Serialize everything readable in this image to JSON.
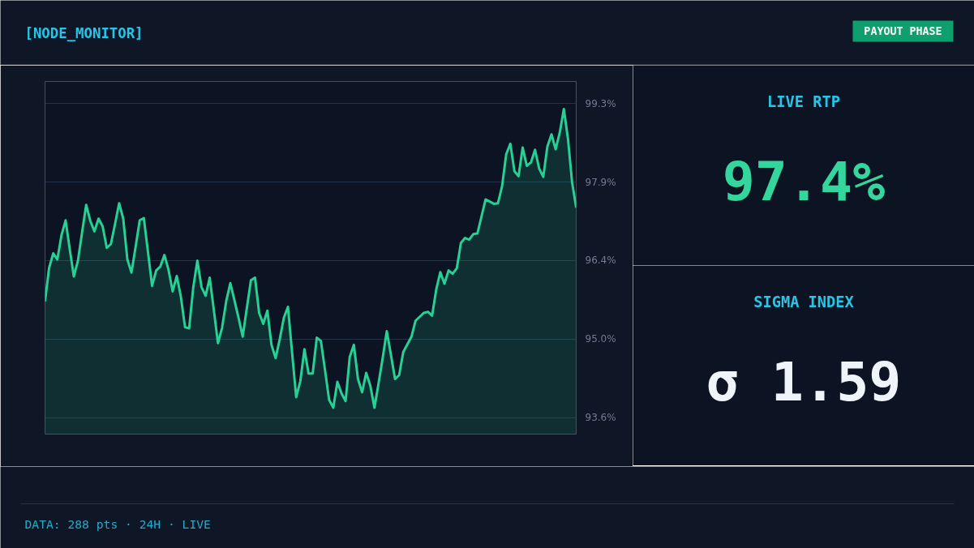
{
  "chart_data": [
    {
      "type": "area",
      "title": "[NODE_MONITOR]",
      "annotations": [
        "PAYOUT PHASE",
        "DATA: 288 pts  ·  24H  ·  LIVE"
      ],
      "categories": [
        null,
        null,
        null,
        null,
        null,
        null,
        null,
        null,
        null,
        null,
        null,
        null,
        null,
        null,
        null,
        null,
        null,
        null,
        null,
        null,
        null,
        null,
        null,
        null,
        null,
        null,
        null,
        null,
        null,
        null,
        null,
        null,
        null,
        null,
        null,
        null,
        null,
        null,
        null,
        null,
        null,
        null,
        null,
        null,
        null,
        null,
        null,
        null,
        null,
        null,
        null,
        null,
        null,
        null,
        null,
        null,
        null,
        null,
        null,
        null,
        null,
        null,
        null,
        null,
        null,
        null,
        null,
        null,
        null,
        null,
        null,
        null,
        null,
        null,
        null,
        null,
        null,
        null,
        null,
        null,
        null,
        null,
        null,
        null,
        null,
        null,
        null,
        null,
        null,
        null,
        null,
        null,
        null,
        null,
        null,
        null,
        null,
        null,
        null,
        null,
        null,
        null,
        null,
        null,
        null,
        null,
        null,
        null,
        null,
        null,
        null,
        null,
        null,
        null,
        null,
        null,
        null,
        null,
        null,
        null,
        null,
        null,
        null,
        null,
        null,
        null,
        null,
        null,
        null,
        null
      ],
      "series": [
        {
          "color": "#27d095",
          "values": [
            95.71,
            96.32,
            96.58,
            96.47,
            96.91,
            97.18,
            96.66,
            96.16,
            96.45,
            96.96,
            97.46,
            97.17,
            96.98,
            97.21,
            97.07,
            96.68,
            96.75,
            97.11,
            97.49,
            97.21,
            96.47,
            96.23,
            96.7,
            97.18,
            97.22,
            96.61,
            95.99,
            96.27,
            96.34,
            96.55,
            96.28,
            95.89,
            96.17,
            95.79,
            95.24,
            95.22,
            95.96,
            96.45,
            95.97,
            95.81,
            96.14,
            95.55,
            94.95,
            95.23,
            95.71,
            96.04,
            95.73,
            95.41,
            95.07,
            95.58,
            96.09,
            96.14,
            95.5,
            95.3,
            95.54,
            94.92,
            94.68,
            95.02,
            95.41,
            95.61,
            94.78,
            93.97,
            94.26,
            94.84,
            94.4,
            94.4,
            95.05,
            94.99,
            94.46,
            93.92,
            93.78,
            94.25,
            94.04,
            93.9,
            94.7,
            94.92,
            94.3,
            94.06,
            94.41,
            94.18,
            93.78,
            94.22,
            94.68,
            95.17,
            94.74,
            94.3,
            94.37,
            94.79,
            94.93,
            95.07,
            95.36,
            95.43,
            95.5,
            95.52,
            95.45,
            95.92,
            96.24,
            96.03,
            96.27,
            96.21,
            96.31,
            96.77,
            96.86,
            96.83,
            96.93,
            96.94,
            97.25,
            97.56,
            97.52,
            97.48,
            97.49,
            97.8,
            98.38,
            98.57,
            98.07,
            97.98,
            98.5,
            98.17,
            98.23,
            98.46,
            98.12,
            97.97,
            98.52,
            98.74,
            98.47,
            98.77,
            99.2,
            98.66,
            97.87,
            97.41
          ]
        }
      ],
      "ylim": [
        93.3,
        99.7
      ],
      "yticks": [
        {
          "value": 93.6,
          "label": "93.6%"
        },
        {
          "value": 95.025,
          "label": "95.0%"
        },
        {
          "value": 96.45,
          "label": "96.4%"
        },
        {
          "value": 97.875,
          "label": "97.9%"
        },
        {
          "value": 99.3,
          "label": "99.3%"
        }
      ],
      "grid": "y",
      "tick_labels": "y",
      "marker": "none"
    },
    {
      "type": "other",
      "title": "LIVE RTP",
      "annotations": [
        "97.4%"
      ]
    },
    {
      "type": "other",
      "title": "SIGMA INDEX",
      "annotations": [
        "σ 1.59"
      ]
    }
  ]
}
